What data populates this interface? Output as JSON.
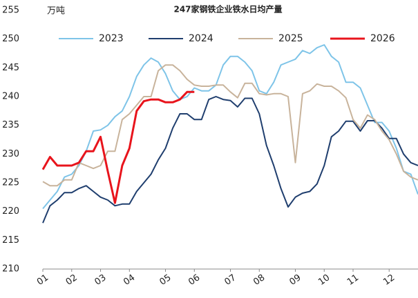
{
  "chart_data": {
    "type": "line",
    "title": "247家钢铁企业铁水日均产量",
    "y_unit": "万吨",
    "categories": [
      "01",
      null,
      null,
      null,
      "02",
      null,
      null,
      null,
      "03",
      null,
      null,
      null,
      "04",
      null,
      null,
      null,
      null,
      "05",
      null,
      null,
      null,
      "06",
      null,
      null,
      null,
      null,
      "07",
      null,
      null,
      null,
      "08",
      null,
      null,
      null,
      null,
      "09",
      null,
      null,
      null,
      "10",
      null,
      null,
      null,
      "11",
      null,
      null,
      null,
      null,
      "12",
      null,
      null,
      null,
      null
    ],
    "ylim": [
      210,
      255
    ],
    "yticks": [
      210,
      215,
      220,
      225,
      230,
      235,
      240,
      245,
      250,
      255
    ],
    "grid": false,
    "series": [
      {
        "name": "2023",
        "color": "#7ec4e8",
        "values": [
          220.5,
          222,
          223.5,
          226,
          226.5,
          228,
          230.5,
          234,
          234.2,
          235,
          236.5,
          237.5,
          240,
          243.5,
          245.5,
          246.7,
          246,
          244,
          241,
          239.5,
          240,
          241.5,
          241,
          241,
          242,
          245.5,
          247,
          247,
          246,
          244.5,
          241,
          240.5,
          242.5,
          245.5,
          246,
          246.5,
          248,
          247.5,
          248.5,
          249,
          247,
          246,
          242.5,
          242.5,
          241.5,
          238.5,
          235.5,
          235.5,
          234,
          231,
          227,
          226.5,
          223
        ]
      },
      {
        "name": "2024",
        "color": "#1f3e6e",
        "values": [
          218,
          221,
          222,
          223.3,
          223.3,
          224,
          224.5,
          223.5,
          222.5,
          222,
          221,
          221.3,
          221.3,
          223.5,
          225,
          226.5,
          229,
          231,
          234.5,
          237,
          237,
          236,
          236,
          239.5,
          240,
          239.5,
          239.3,
          238.2,
          239.7,
          239.7,
          237,
          231.5,
          228,
          224,
          220.8,
          222.5,
          223.2,
          223.5,
          224.8,
          228,
          233,
          234,
          235.7,
          235.7,
          234,
          235.8,
          235.8,
          234.5,
          232.7,
          232.7,
          230,
          228.5,
          228
        ]
      },
      {
        "name": "2025",
        "color": "#c8b39b",
        "values": [
          225.2,
          224.5,
          224.5,
          225.5,
          225.5,
          228.5,
          228,
          227.5,
          228,
          230.5,
          230.5,
          236,
          237,
          238.5,
          240,
          240,
          244.5,
          245.5,
          245.5,
          244.5,
          243,
          242,
          241.8,
          241.8,
          242,
          242,
          240.8,
          239.8,
          242.3,
          242.3,
          240.5,
          240.3,
          240.5,
          240.5,
          240,
          228.5,
          240.5,
          241,
          242.2,
          241.8,
          241.8,
          241,
          239.8,
          236,
          234.5,
          236.8,
          236,
          234,
          232.5,
          230,
          227,
          226,
          225.5
        ]
      },
      {
        "name": "2026",
        "color": "#e8141c",
        "values": [
          227.3,
          229.5,
          228,
          228,
          228,
          228.5,
          230.5,
          230.5,
          233,
          227,
          221.5,
          228,
          231,
          237.5,
          239.2,
          239.5,
          239.5,
          239,
          239,
          239.5,
          240.8,
          240.8,
          null,
          null,
          null,
          null,
          null,
          null,
          null,
          null,
          null,
          null,
          null,
          null,
          null,
          null,
          null,
          null,
          null,
          null,
          null,
          null,
          null,
          null,
          null,
          null,
          null,
          null,
          null,
          null,
          null,
          null,
          null
        ]
      }
    ]
  }
}
